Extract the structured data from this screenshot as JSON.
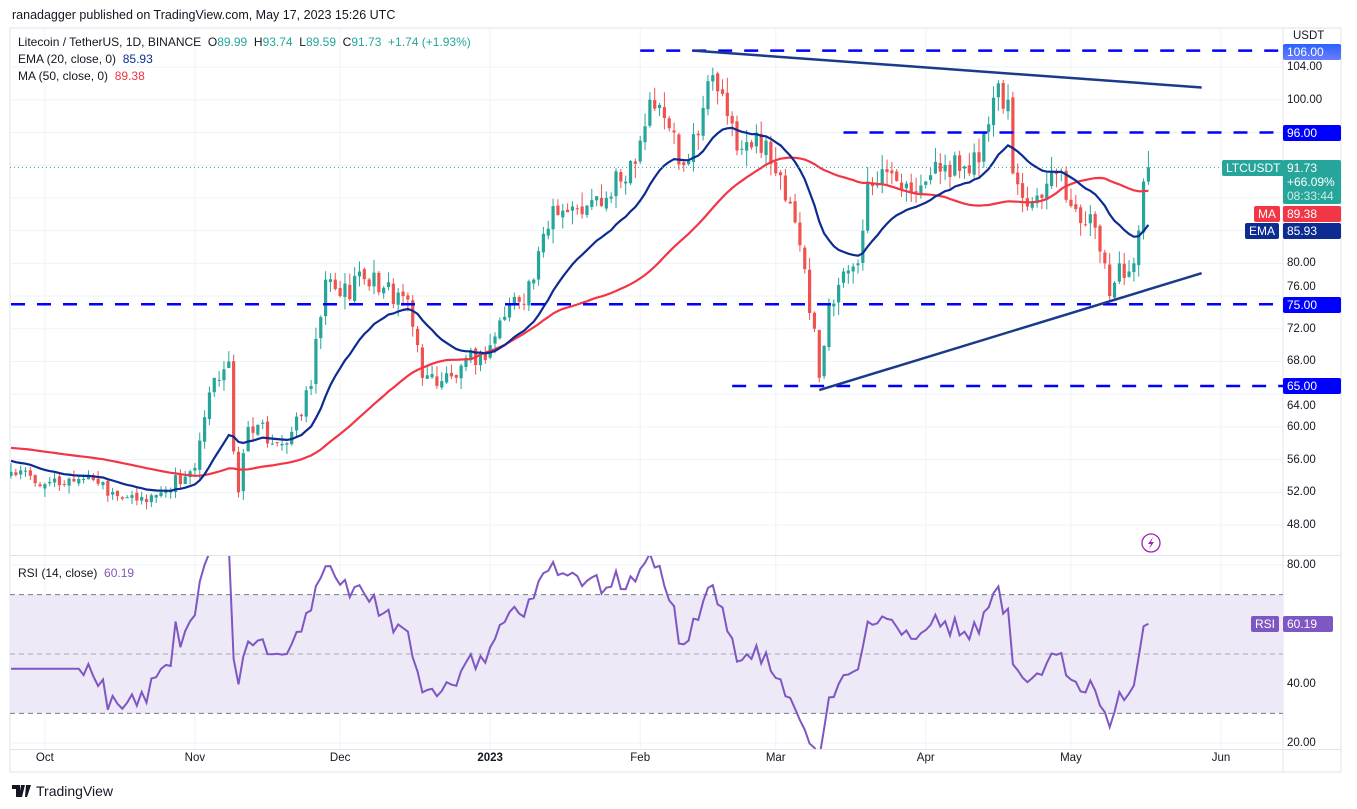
{
  "header": {
    "published": "ranadagger published on TradingView.com, May 17, 2023 15:26 UTC"
  },
  "legend": {
    "symbol": "Litecoin / TetherUS, 1D, BINANCE",
    "o_label": "O",
    "o": "89.99",
    "h_label": "H",
    "h": "93.74",
    "l_label": "L",
    "l": "89.59",
    "c_label": "C",
    "c": "91.73",
    "change": "+1.74 (+1.93%)",
    "ema_label": "EMA (20, close, 0)",
    "ema_value": "85.93",
    "ma_label": "MA (50, close, 0)",
    "ma_value": "89.38",
    "rsi_label": "RSI (14, close)",
    "rsi_value": "60.19"
  },
  "axis": {
    "currency": "USDT",
    "price_ticks": [
      "104.00",
      "100.00",
      "80.00",
      "76.00",
      "72.00",
      "68.00",
      "64.00",
      "60.00",
      "56.00",
      "52.00",
      "48.00"
    ],
    "rsi_ticks": [
      "80.00",
      "40.00",
      "20.00"
    ],
    "time_ticks": [
      "Oct",
      "Nov",
      "Dec",
      "2023",
      "Feb",
      "Mar",
      "Apr",
      "May",
      "Jun"
    ]
  },
  "tags": {
    "level_106": "106.00",
    "level_96": "96.00",
    "level_75": "75.00",
    "level_65": "65.00",
    "symbol_tag": "LTCUSDT",
    "last_price": "91.73",
    "last_change": "+66.09%",
    "countdown": "08:33:44",
    "ma_tag": "MA",
    "ma_value": "89.38",
    "ema_tag": "EMA",
    "ema_value": "85.93",
    "rsi_tag": "RSI",
    "rsi_value": "60.19"
  },
  "brand": {
    "name": "TradingView"
  },
  "colors": {
    "up": "#26a69a",
    "down": "#ef5350",
    "ema": "#0d2c91",
    "ma": "#f23645",
    "rsi": "#7e57c2",
    "levels": "#0000ff",
    "trendlines": "#1b3b8a",
    "rsi_band": "#ede9f7"
  },
  "chart_data": {
    "type": "candlestick",
    "symbol": "LTCUSDT",
    "interval": "1D",
    "ylim": [
      46,
      107
    ],
    "rsi_ylim": [
      20,
      82
    ],
    "grid": true,
    "close_keypoints": [
      [
        "2022-09-24",
        54.5
      ],
      [
        "2022-10-01",
        53
      ],
      [
        "2022-10-10",
        54
      ],
      [
        "2022-10-20",
        51
      ],
      [
        "2022-10-25",
        52
      ],
      [
        "2022-11-01",
        55
      ],
      [
        "2022-11-05",
        66
      ],
      [
        "2022-11-08",
        68
      ],
      [
        "2022-11-09",
        57
      ],
      [
        "2022-11-10",
        52
      ],
      [
        "2022-11-12",
        60
      ],
      [
        "2022-11-20",
        58
      ],
      [
        "2022-11-25",
        65
      ],
      [
        "2022-11-28",
        78
      ],
      [
        "2022-12-01",
        76
      ],
      [
        "2022-12-05",
        79
      ],
      [
        "2022-12-10",
        77
      ],
      [
        "2022-12-14",
        76
      ],
      [
        "2022-12-17",
        70
      ],
      [
        "2022-12-18",
        66
      ],
      [
        "2022-12-25",
        66
      ],
      [
        "2022-12-30",
        69
      ],
      [
        "2023-01-01",
        70
      ],
      [
        "2023-01-05",
        75
      ],
      [
        "2023-01-10",
        78
      ],
      [
        "2023-01-14",
        87
      ],
      [
        "2023-01-20",
        86
      ],
      [
        "2023-01-25",
        88
      ],
      [
        "2023-01-28",
        90
      ],
      [
        "2023-02-01",
        95
      ],
      [
        "2023-02-03",
        100
      ],
      [
        "2023-02-08",
        96
      ],
      [
        "2023-02-10",
        92
      ],
      [
        "2023-02-14",
        99
      ],
      [
        "2023-02-16",
        103
      ],
      [
        "2023-02-19",
        98
      ],
      [
        "2023-02-22",
        94
      ],
      [
        "2023-02-27",
        95
      ],
      [
        "2023-03-01",
        91
      ],
      [
        "2023-03-05",
        85
      ],
      [
        "2023-03-09",
        72
      ],
      [
        "2023-03-10",
        66
      ],
      [
        "2023-03-12",
        75
      ],
      [
        "2023-03-15",
        79
      ],
      [
        "2023-03-18",
        80
      ],
      [
        "2023-03-20",
        90
      ],
      [
        "2023-03-25",
        91
      ],
      [
        "2023-04-01",
        90
      ],
      [
        "2023-04-05",
        92
      ],
      [
        "2023-04-10",
        91
      ],
      [
        "2023-04-14",
        97
      ],
      [
        "2023-04-16",
        102
      ],
      [
        "2023-04-18",
        100
      ],
      [
        "2023-04-19",
        91
      ],
      [
        "2023-04-21",
        88
      ],
      [
        "2023-04-25",
        88
      ],
      [
        "2023-04-28",
        91
      ],
      [
        "2023-05-01",
        87
      ],
      [
        "2023-05-05",
        86
      ],
      [
        "2023-05-08",
        80
      ],
      [
        "2023-05-09",
        76
      ],
      [
        "2023-05-11",
        80
      ],
      [
        "2023-05-13",
        79
      ],
      [
        "2023-05-14",
        80
      ],
      [
        "2023-05-15",
        84
      ],
      [
        "2023-05-16",
        89.99
      ],
      [
        "2023-05-17",
        91.73
      ]
    ],
    "last_candle": {
      "date": "2023-05-17",
      "open": 89.99,
      "high": 93.74,
      "low": 89.59,
      "close": 91.73
    },
    "ema": {
      "period": 20,
      "start": 56,
      "last": 85.93
    },
    "ma": {
      "period": 50,
      "start": 58,
      "last": 89.38
    },
    "rsi": {
      "period": 14,
      "last": 60.19,
      "upper": 70,
      "middle": 50,
      "lower": 30
    },
    "horizontal_levels": [
      106,
      96,
      75,
      65
    ],
    "trendlines": [
      {
        "from": [
          "2023-02-12",
          106
        ],
        "to": [
          "2023-05-28",
          101.5
        ]
      },
      {
        "from": [
          "2023-03-10",
          64.5
        ],
        "to": [
          "2023-05-28",
          78.8
        ]
      }
    ]
  }
}
